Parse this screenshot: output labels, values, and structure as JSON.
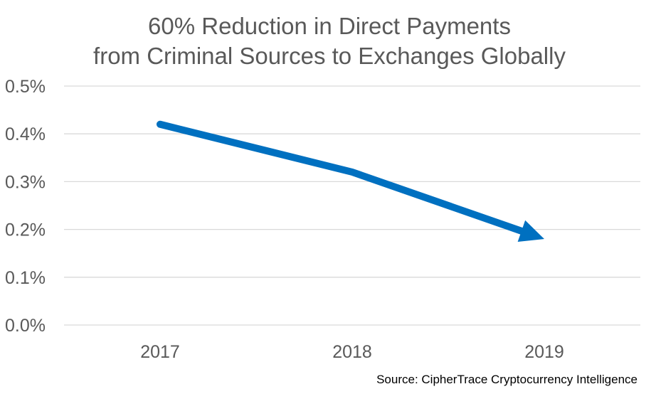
{
  "chart_data": {
    "type": "line",
    "title": "60% Reduction in Direct Payments\nfrom Criminal Sources to Exchanges Globally",
    "title_lines": [
      "60% Reduction in Direct Payments",
      "from Criminal Sources to Exchanges Globally"
    ],
    "xlabel": "",
    "ylabel": "",
    "categories": [
      "2017",
      "2018",
      "2019"
    ],
    "series": [
      {
        "values": [
          0.42,
          0.32,
          0.18
        ]
      }
    ],
    "ylim": [
      0,
      0.5
    ],
    "yticks": [
      0.0,
      0.1,
      0.2,
      0.3,
      0.4,
      0.5
    ],
    "ytick_labels": [
      "0.0%",
      "0.1%",
      "0.2%",
      "0.3%",
      "0.4%",
      "0.5%"
    ],
    "grid": true,
    "line_end": "arrow",
    "colors": {
      "series": "#0070c0",
      "grid": "#d9d9d9",
      "text": "#595959"
    }
  },
  "source_note": "Source: CipherTrace Cryptocurrency Intelligence"
}
